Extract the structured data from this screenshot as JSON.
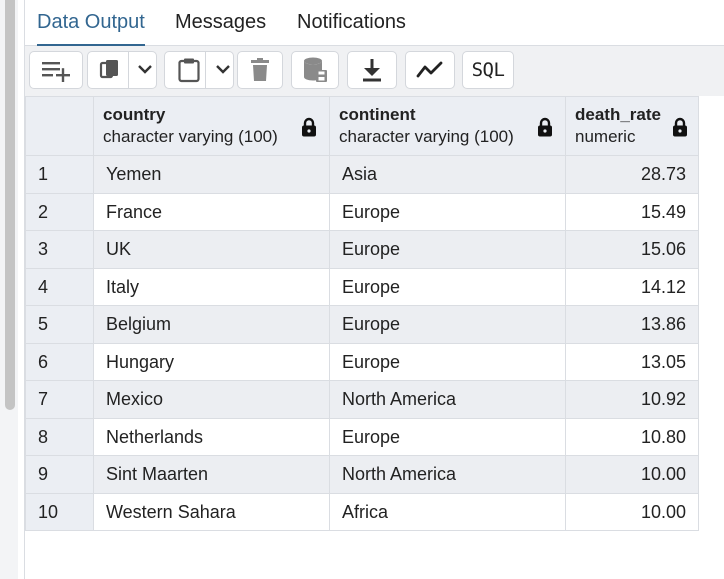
{
  "tabs": [
    {
      "label": "Data Output",
      "active": true
    },
    {
      "label": "Messages",
      "active": false
    },
    {
      "label": "Notifications",
      "active": false
    }
  ],
  "toolbar": {
    "buttons": [
      {
        "name": "add-row-icon"
      },
      {
        "name": "copy-icon"
      },
      {
        "name": "chevron-down-icon"
      },
      {
        "name": "paste-icon"
      },
      {
        "name": "chevron-down-icon"
      },
      {
        "name": "trash-icon"
      },
      {
        "name": "save-data-icon"
      },
      {
        "name": "download-icon"
      },
      {
        "name": "graph-icon"
      }
    ],
    "sql_label": "SQL"
  },
  "columns": [
    {
      "name": "country",
      "type": "character varying (100)"
    },
    {
      "name": "continent",
      "type": "character varying (100)"
    },
    {
      "name": "death_rate",
      "type": "numeric"
    }
  ],
  "rows": [
    {
      "n": "1",
      "country": "Yemen",
      "continent": "Asia",
      "death_rate": "28.73"
    },
    {
      "n": "2",
      "country": "France",
      "continent": "Europe",
      "death_rate": "15.49"
    },
    {
      "n": "3",
      "country": "UK",
      "continent": "Europe",
      "death_rate": "15.06"
    },
    {
      "n": "4",
      "country": "Italy",
      "continent": "Europe",
      "death_rate": "14.12"
    },
    {
      "n": "5",
      "country": "Belgium",
      "continent": "Europe",
      "death_rate": "13.86"
    },
    {
      "n": "6",
      "country": "Hungary",
      "continent": "Europe",
      "death_rate": "13.05"
    },
    {
      "n": "7",
      "country": "Mexico",
      "continent": "North America",
      "death_rate": "10.92"
    },
    {
      "n": "8",
      "country": "Netherlands",
      "continent": "Europe",
      "death_rate": "10.80"
    },
    {
      "n": "9",
      "country": "Sint Maarten",
      "continent": "North America",
      "death_rate": "10.00"
    },
    {
      "n": "10",
      "country": "Western Sahara",
      "continent": "Africa",
      "death_rate": "10.00"
    }
  ],
  "colors": {
    "accent": "#326690",
    "header_bg": "#ebeef3",
    "stripe": "#eceef2"
  }
}
